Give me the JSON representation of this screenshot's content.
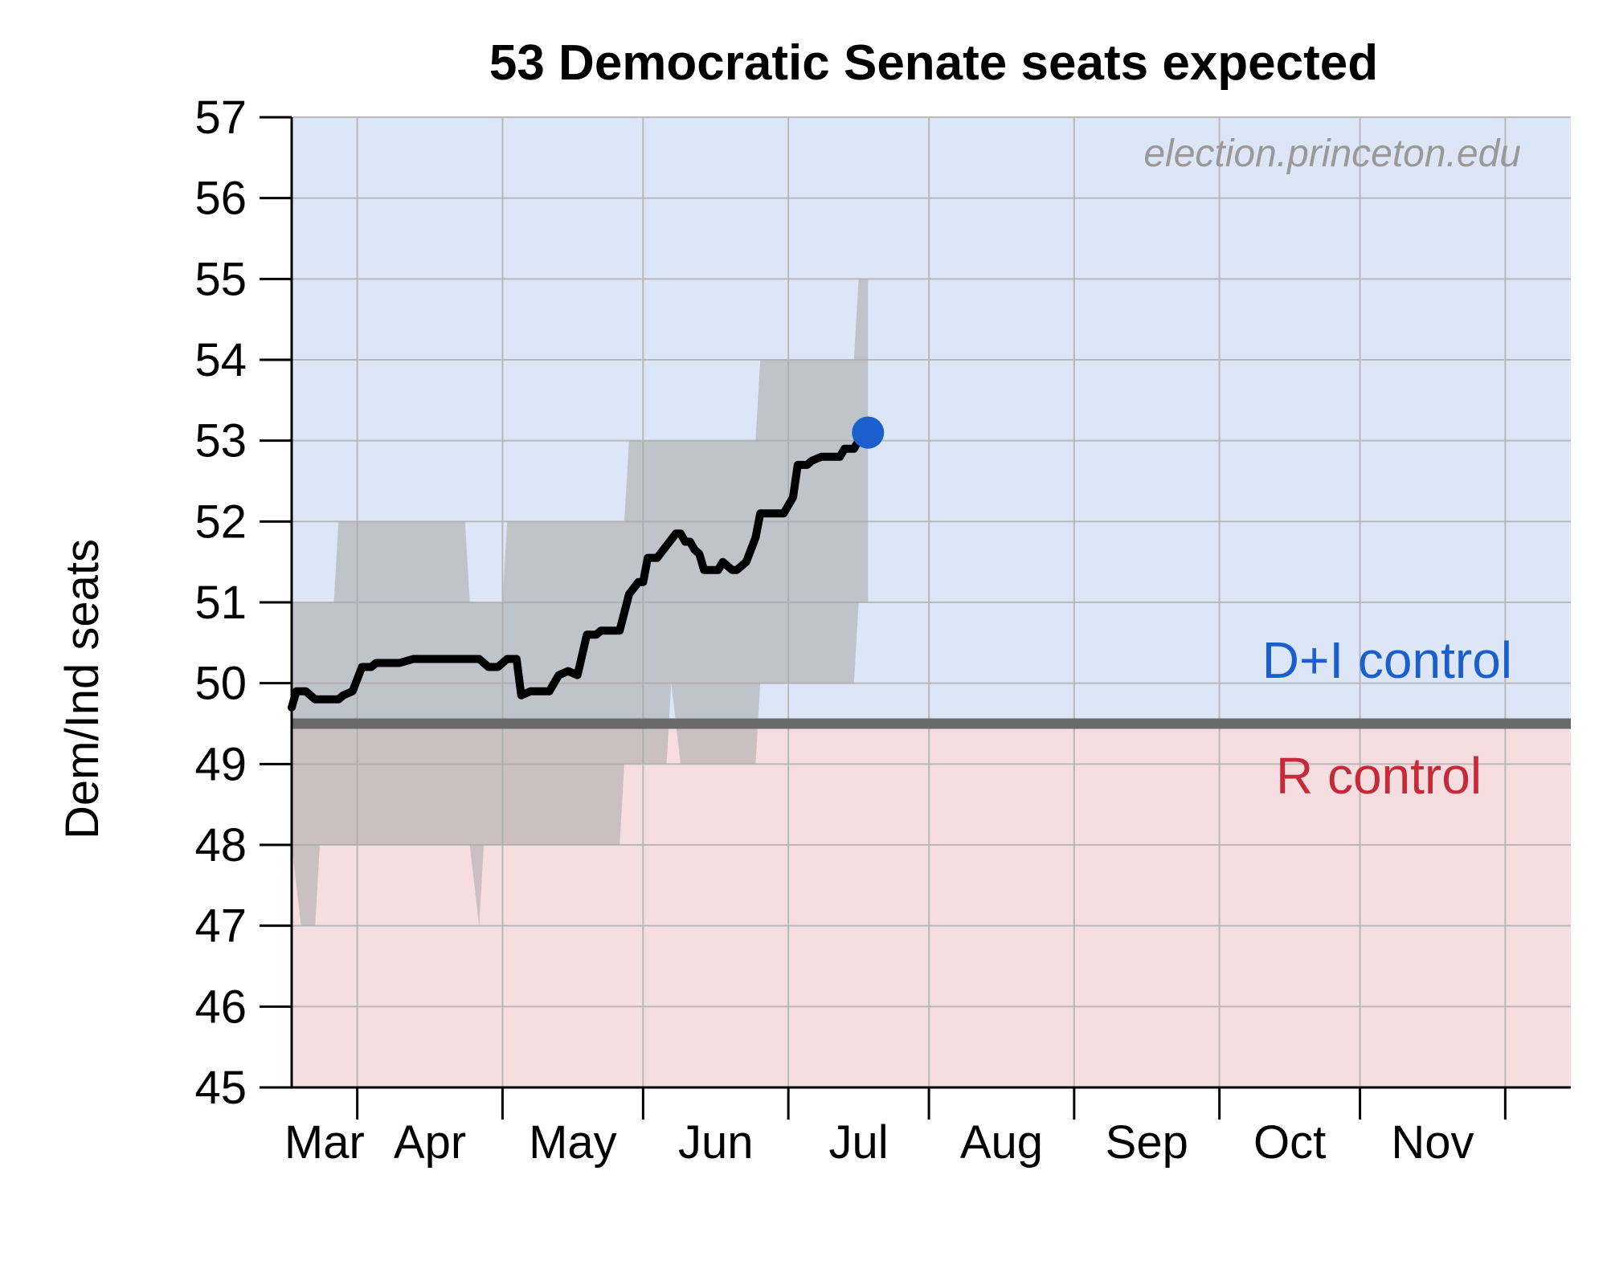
{
  "chart_data": {
    "type": "line",
    "title": "53 Democratic Senate seats expected",
    "xlabel": "",
    "ylabel": "Dem/Ind seats",
    "ylim": [
      45,
      57
    ],
    "yticks": [
      "45",
      "46",
      "47",
      "48",
      "49",
      "50",
      "51",
      "52",
      "53",
      "54",
      "55",
      "56",
      "57"
    ],
    "xlim": [
      "Feb 15",
      "Nov 15"
    ],
    "x_ticks": [
      "Mar 1",
      "Apr 1",
      "May 1",
      "Jun 1",
      "Jul 1",
      "Aug 1",
      "Sep 1",
      "Oct 1",
      "Nov 1"
    ],
    "x_tick_labels": [
      "Mar",
      "Apr",
      "May",
      "Jun",
      "Jul",
      "Aug",
      "Sep",
      "Oct",
      "Nov"
    ],
    "grid": true,
    "watermark": "election.princeton.edu",
    "control_threshold": 49.5,
    "regions": [
      {
        "label": "D+I control",
        "color": "#1a5fcc",
        "fill": "#dce6f6"
      },
      {
        "label": "R control",
        "color": "#c42a3a",
        "fill": "#f5dde0"
      }
    ],
    "threshold_color": "#6a6a6a",
    "band_color": "#a8a8a8",
    "line_color": "#000000",
    "current_marker": {
      "x": "Jun 18",
      "y": 53.1,
      "color": "#1a5fcc"
    },
    "series": [
      {
        "values": [
          [
            "Feb 15",
            49.7
          ],
          [
            "Feb 16",
            49.9
          ],
          [
            "Feb 18",
            49.9
          ],
          [
            "Feb 20",
            49.8
          ],
          [
            "Feb 25",
            49.8
          ],
          [
            "Feb 26",
            49.85
          ],
          [
            "Feb 28",
            49.9
          ],
          [
            "Mar 2",
            50.2
          ],
          [
            "Mar 4",
            50.2
          ],
          [
            "Mar 5",
            50.25
          ],
          [
            "Mar 10",
            50.25
          ],
          [
            "Mar 13",
            50.3
          ],
          [
            "Mar 27",
            50.3
          ],
          [
            "Mar 29",
            50.2
          ],
          [
            "Mar 31",
            50.2
          ],
          [
            "Apr 2",
            50.3
          ],
          [
            "Apr 4",
            50.3
          ],
          [
            "Apr 5",
            49.85
          ],
          [
            "Apr 7",
            49.9
          ],
          [
            "Apr 11",
            49.9
          ],
          [
            "Apr 13",
            50.1
          ],
          [
            "Apr 15",
            50.15
          ],
          [
            "Apr 17",
            50.1
          ],
          [
            "Apr 19",
            50.6
          ],
          [
            "Apr 21",
            50.6
          ],
          [
            "Apr 22",
            50.65
          ],
          [
            "Apr 26",
            50.65
          ],
          [
            "Apr 28",
            51.1
          ],
          [
            "Apr 30",
            51.25
          ],
          [
            "May 1",
            51.25
          ],
          [
            "May 2",
            51.55
          ],
          [
            "May 4",
            51.55
          ],
          [
            "May 6",
            51.7
          ],
          [
            "May 8",
            51.85
          ],
          [
            "May 9",
            51.85
          ],
          [
            "May 10",
            51.75
          ],
          [
            "May 11",
            51.75
          ],
          [
            "May 12",
            51.65
          ],
          [
            "May 13",
            51.6
          ],
          [
            "May 14",
            51.4
          ],
          [
            "May 17",
            51.4
          ],
          [
            "May 18",
            51.5
          ],
          [
            "May 20",
            51.4
          ],
          [
            "May 21",
            51.4
          ],
          [
            "May 23",
            51.5
          ],
          [
            "May 25",
            51.8
          ],
          [
            "May 26",
            52.1
          ],
          [
            "May 31",
            52.1
          ],
          [
            "Jun 2",
            52.3
          ],
          [
            "Jun 3",
            52.7
          ],
          [
            "Jun 5",
            52.7
          ],
          [
            "Jun 6",
            52.75
          ],
          [
            "Jun 8",
            52.8
          ],
          [
            "Jun 12",
            52.8
          ],
          [
            "Jun 13",
            52.9
          ],
          [
            "Jun 15",
            52.9
          ],
          [
            "Jun 16",
            53.0
          ],
          [
            "Jun 18",
            53.1
          ]
        ]
      }
    ],
    "band": [
      [
        "Feb 15",
        51,
        48
      ],
      [
        "Feb 17",
        51,
        47
      ],
      [
        "Feb 20",
        51,
        47
      ],
      [
        "Feb 21",
        51,
        48
      ],
      [
        "Feb 24",
        51,
        48
      ],
      [
        "Feb 25",
        52,
        48
      ],
      [
        "Mar 24",
        52,
        48
      ],
      [
        "Mar 25",
        51,
        48
      ],
      [
        "Mar 27",
        51,
        47
      ],
      [
        "Mar 28",
        51,
        48
      ],
      [
        "Apr 1",
        51,
        48
      ],
      [
        "Apr 2",
        52,
        48
      ],
      [
        "Apr 26",
        52,
        48
      ],
      [
        "Apr 27",
        52,
        49
      ],
      [
        "Apr 28",
        53,
        49
      ],
      [
        "May 6",
        53,
        49
      ],
      [
        "May 7",
        53,
        50
      ],
      [
        "May 9",
        53,
        49
      ],
      [
        "May 25",
        53,
        49
      ],
      [
        "May 26",
        54,
        50
      ],
      [
        "Jun 15",
        54,
        50
      ],
      [
        "Jun 16",
        55,
        51
      ],
      [
        "Jun 18",
        55,
        51
      ]
    ]
  }
}
